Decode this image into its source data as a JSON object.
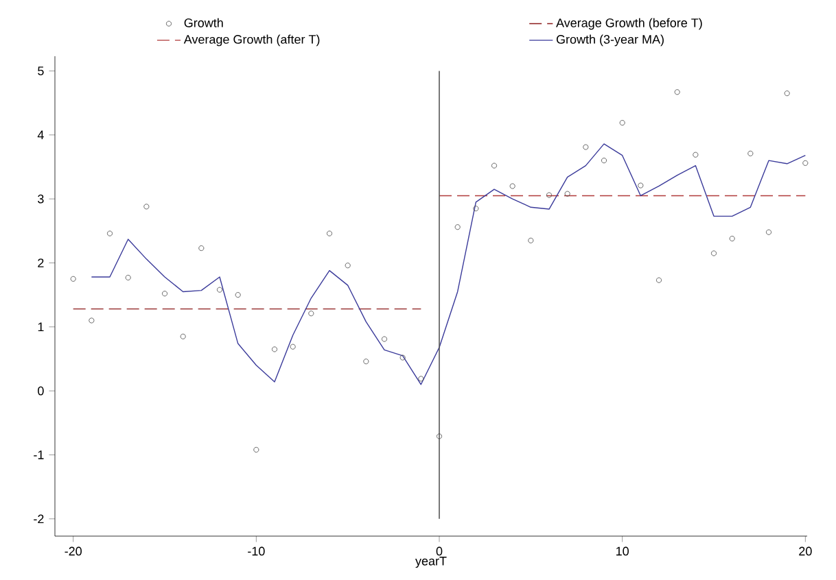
{
  "chart_data": {
    "type": "line",
    "xlabel": "yearT",
    "xlim": [
      -21,
      20.1
    ],
    "ylim": [
      -2.27,
      5.23
    ],
    "xticks": [
      -20,
      -10,
      0,
      10,
      20
    ],
    "yticks": [
      -2,
      -1,
      0,
      1,
      2,
      3,
      4,
      5
    ],
    "grid": false,
    "legend": "top",
    "ref_lines": [
      {
        "axis": "x",
        "value": 0,
        "color": "#555555"
      }
    ],
    "series": [
      {
        "name": "Growth",
        "type": "scatter",
        "marker": "circle",
        "color": "#444444",
        "x": [
          -20,
          -19,
          -18,
          -17,
          -16,
          -15,
          -14,
          -13,
          -12,
          -11,
          -10,
          -9,
          -8,
          -7,
          -6,
          -5,
          -4,
          -3,
          -2,
          -1,
          0,
          1,
          2,
          3,
          4,
          5,
          6,
          7,
          8,
          9,
          10,
          11,
          12,
          13,
          14,
          15,
          16,
          17,
          18,
          19,
          20
        ],
        "values": [
          1.75,
          1.1,
          2.46,
          1.77,
          2.88,
          1.52,
          0.85,
          2.23,
          1.58,
          1.5,
          -0.92,
          0.65,
          0.69,
          1.21,
          2.46,
          1.96,
          0.46,
          0.81,
          0.52,
          0.19,
          -0.71,
          2.56,
          2.85,
          3.52,
          3.2,
          2.35,
          3.06,
          3.08,
          3.81,
          3.6,
          4.19,
          3.21,
          1.73,
          4.67,
          3.69,
          2.15,
          2.38,
          3.71,
          2.48,
          4.65,
          3.56
        ]
      },
      {
        "name": "Average Growth (before T)",
        "line_style": "dashed",
        "color": "#8b1a1a",
        "x": [
          -20,
          -1
        ],
        "values": [
          1.28,
          1.28
        ]
      },
      {
        "name": "Average Growth (after T)",
        "line_style": "dashed",
        "color": "#b03a3a",
        "x": [
          0,
          20
        ],
        "values": [
          3.05,
          3.05
        ]
      },
      {
        "name": "Growth (3-year MA)",
        "line_style": "solid",
        "color": "#3a3a9a",
        "x": [
          -19,
          -18,
          -17,
          -16,
          -15,
          -14,
          -13,
          -12,
          -11,
          -10,
          -9,
          -8,
          -7,
          -6,
          -5,
          -4,
          -3,
          -2,
          -1,
          0,
          1,
          2,
          3,
          4,
          5,
          6,
          7,
          8,
          9,
          10,
          11,
          12,
          13,
          14,
          15,
          16,
          17,
          18,
          19,
          20
        ],
        "values": [
          1.78,
          1.78,
          2.37,
          2.06,
          1.78,
          1.55,
          1.57,
          1.78,
          0.74,
          0.4,
          0.14,
          0.87,
          1.45,
          1.88,
          1.65,
          1.08,
          0.64,
          0.55,
          0.1,
          0.68,
          1.55,
          2.95,
          3.15,
          3.0,
          2.87,
          2.84,
          3.34,
          3.52,
          3.86,
          3.68,
          3.05,
          3.2,
          3.37,
          3.52,
          2.73,
          2.73,
          2.87,
          3.6,
          3.55,
          3.68
        ]
      }
    ]
  }
}
